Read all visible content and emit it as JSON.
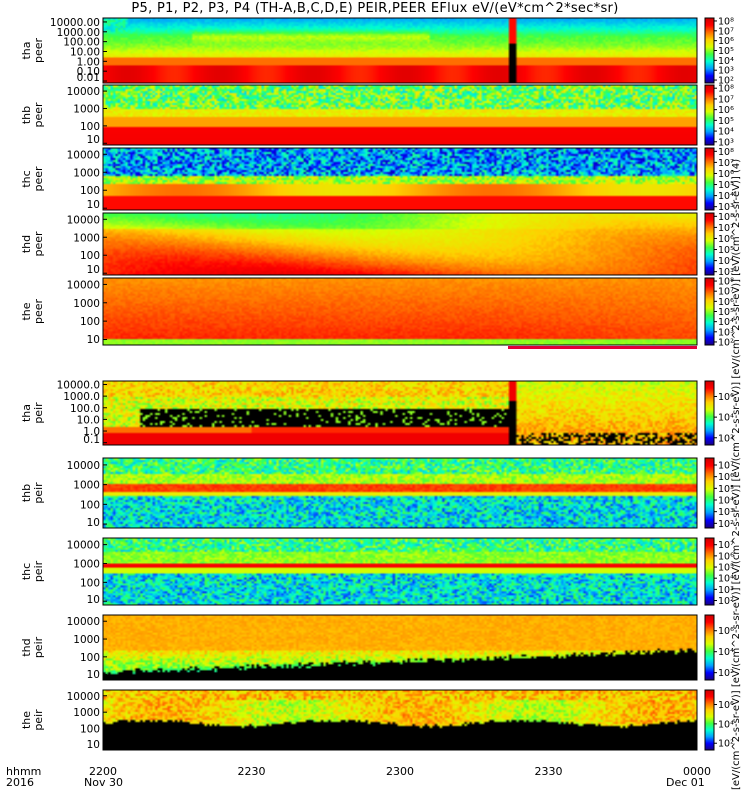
{
  "chart_data": {
    "type": "heatmap",
    "title": "P5, P1, P2, P3, P4 (TH-A,B,C,D,E) PEIR,PEER EFlux eV/(eV*cm^2*sec*sr)",
    "colorbar_title": "[eV/(cm^2-s-sr-eV)]   [eV/(cm^2-s-sr-eV)]   [eV/(cm^2-s-sr-eV)]   [eV/(cm^2-s-sr-eV)]   [eV/(cm^2-s-sr-eV)]   [eV/(cm^2-s-sr-eV)] (4)",
    "time_axis": {
      "row_label": "hhmm",
      "year": "2016",
      "ticks": [
        "2200",
        "2230",
        "2300",
        "2330",
        "0000"
      ],
      "start_date": "Nov 30",
      "end_date": "Dec 01"
    },
    "panels": [
      {
        "probe": "tha",
        "species": "peer",
        "y_ticks": [
          "10000.00",
          "1000.00",
          "100.00",
          "10.00",
          "1.00",
          "0.10",
          "0.01"
        ],
        "y_log_range": [
          -2.2,
          4.4
        ],
        "colorbar_ticks": [
          "10⁸",
          "10⁷",
          "10⁶",
          "10⁵",
          "10⁴",
          "10³",
          "10²"
        ],
        "colorbar_log_range": [
          1.7,
          8.3
        ],
        "profile": "tha_e"
      },
      {
        "probe": "thb",
        "species": "peer",
        "y_ticks": [
          "10000",
          "1000",
          "100",
          "10"
        ],
        "y_log_range": [
          0.9,
          4.35
        ],
        "colorbar_ticks": [
          "10⁸",
          "10⁷",
          "10⁶",
          "10⁵",
          "10⁴",
          "10³"
        ],
        "colorbar_log_range": [
          2.7,
          8.3
        ],
        "profile": "thb_e"
      },
      {
        "probe": "thc",
        "species": "peer",
        "y_ticks": [
          "10000",
          "1000",
          "100",
          "10"
        ],
        "y_log_range": [
          0.9,
          4.35
        ],
        "colorbar_ticks": [
          "10⁸",
          "10⁷",
          "10⁶",
          "10⁵",
          "10⁴",
          "10³"
        ],
        "colorbar_log_range": [
          2.7,
          8.3
        ],
        "profile": "thc_e"
      },
      {
        "probe": "thd",
        "species": "peer",
        "y_ticks": [
          "10000",
          "1000",
          "100",
          "10"
        ],
        "y_log_range": [
          0.9,
          4.35
        ],
        "colorbar_ticks": [
          "10⁸",
          "10⁷",
          "10⁶",
          "10⁵",
          "10⁴",
          "10³"
        ],
        "colorbar_log_range": [
          2.7,
          8.3
        ],
        "profile": "thd_e"
      },
      {
        "probe": "the",
        "species": "peer",
        "y_ticks": [
          "10000",
          "1000",
          "100",
          "10"
        ],
        "y_log_range": [
          0.7,
          4.35
        ],
        "colorbar_ticks": [
          "10⁸",
          "10⁷",
          "10⁶",
          "10⁵",
          "10⁴",
          "10³",
          "10²"
        ],
        "colorbar_log_range": [
          1.7,
          8.3
        ],
        "profile": "the_e"
      },
      {
        "probe": "tha",
        "species": "peir",
        "y_ticks": [
          "10000.0",
          "1000.0",
          "100.0",
          "10.0",
          "1.0",
          "0.1"
        ],
        "y_log_range": [
          -1.2,
          4.3
        ],
        "colorbar_ticks": [
          "10⁶",
          "10⁴",
          "10²"
        ],
        "colorbar_log_range": [
          1.3,
          7.5
        ],
        "profile": "tha_i"
      },
      {
        "probe": "thb",
        "species": "peir",
        "y_ticks": [
          "10000",
          "1000",
          "100",
          "10"
        ],
        "y_log_range": [
          0.8,
          4.35
        ],
        "colorbar_ticks": [
          "10⁷",
          "10⁶",
          "10⁵",
          "10⁴",
          "10³",
          "10²"
        ],
        "colorbar_log_range": [
          1.6,
          7.6
        ],
        "profile": "thb_i"
      },
      {
        "probe": "thc",
        "species": "peir",
        "y_ticks": [
          "10000",
          "1000",
          "100",
          "10"
        ],
        "y_log_range": [
          0.8,
          4.35
        ],
        "colorbar_ticks": [
          "10⁷",
          "10⁶",
          "10⁵",
          "10⁴",
          "10³",
          "10²"
        ],
        "colorbar_log_range": [
          1.6,
          7.6
        ],
        "profile": "thc_i"
      },
      {
        "probe": "thd",
        "species": "peir",
        "y_ticks": [
          "10000",
          "1000",
          "100",
          "10"
        ],
        "y_log_range": [
          0.7,
          4.35
        ],
        "colorbar_ticks": [
          "10⁶",
          "10⁴",
          "10²"
        ],
        "colorbar_log_range": [
          1.3,
          7.5
        ],
        "profile": "thd_i"
      },
      {
        "probe": "the",
        "species": "peir",
        "y_ticks": [
          "10000",
          "1000",
          "100",
          "10"
        ],
        "y_log_range": [
          0.7,
          4.35
        ],
        "colorbar_ticks": [
          "10⁶",
          "10⁴",
          "10²"
        ],
        "colorbar_log_range": [
          1.3,
          7.5
        ],
        "profile": "the_i"
      }
    ],
    "colors": {
      "colormap": [
        "#1a0080",
        "#0000ff",
        "#00a0ff",
        "#00ffd0",
        "#40ff40",
        "#d8ff00",
        "#ffd000",
        "#ff7000",
        "#ff0000",
        "#cc0000"
      ],
      "no_data": "#000000",
      "flag_bar": "#e0003a"
    }
  }
}
